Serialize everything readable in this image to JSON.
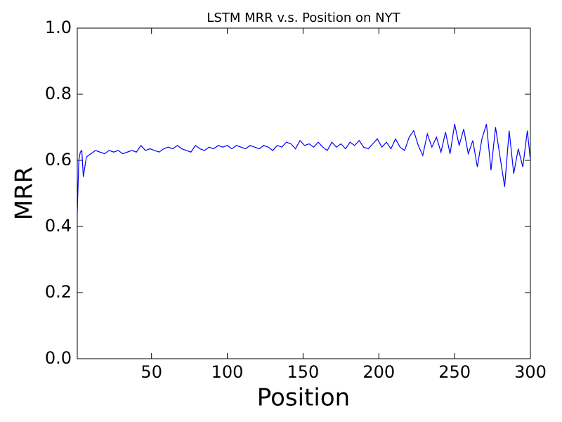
{
  "chart_data": {
    "type": "line",
    "title": "LSTM MRR v.s. Position on NYT",
    "x_label": "Position",
    "y_label": "MRR",
    "xlim": [
      1,
      300
    ],
    "ylim": [
      0,
      1
    ],
    "xticks": [
      50,
      100,
      150,
      200,
      250,
      300
    ],
    "yticks": [
      {
        "value": 0,
        "label": "0.0"
      },
      0.2,
      0.4,
      0.6,
      0.8,
      {
        "value": 1,
        "label": "1.0"
      }
    ],
    "grid": false,
    "series": [
      {
        "name": "LSTM",
        "color": "#0000ff",
        "x": [
          1,
          2,
          3,
          4,
          5,
          7,
          10,
          13,
          16,
          19,
          22,
          25,
          28,
          31,
          34,
          37,
          40,
          43,
          46,
          49,
          52,
          55,
          58,
          61,
          64,
          67,
          70,
          73,
          76,
          79,
          82,
          85,
          88,
          91,
          94,
          97,
          100,
          103,
          106,
          109,
          112,
          115,
          118,
          121,
          124,
          127,
          130,
          133,
          136,
          139,
          142,
          145,
          148,
          151,
          154,
          157,
          160,
          163,
          166,
          169,
          172,
          175,
          178,
          181,
          184,
          187,
          190,
          193,
          196,
          199,
          202,
          205,
          208,
          211,
          214,
          217,
          220,
          223,
          226,
          229,
          232,
          235,
          238,
          241,
          244,
          247,
          250,
          253,
          256,
          259,
          262,
          265,
          268,
          271,
          274,
          277,
          280,
          283,
          286,
          289,
          292,
          295,
          298,
          300
        ],
        "values": [
          0.44,
          0.6,
          0.625,
          0.63,
          0.55,
          0.61,
          0.62,
          0.63,
          0.625,
          0.62,
          0.63,
          0.625,
          0.63,
          0.62,
          0.625,
          0.63,
          0.625,
          0.645,
          0.63,
          0.635,
          0.63,
          0.625,
          0.635,
          0.64,
          0.635,
          0.645,
          0.635,
          0.63,
          0.625,
          0.645,
          0.635,
          0.63,
          0.64,
          0.635,
          0.645,
          0.64,
          0.645,
          0.635,
          0.645,
          0.64,
          0.635,
          0.645,
          0.64,
          0.635,
          0.645,
          0.64,
          0.63,
          0.645,
          0.64,
          0.655,
          0.65,
          0.635,
          0.66,
          0.645,
          0.65,
          0.64,
          0.655,
          0.64,
          0.63,
          0.655,
          0.64,
          0.65,
          0.635,
          0.655,
          0.645,
          0.66,
          0.64,
          0.635,
          0.65,
          0.665,
          0.64,
          0.655,
          0.635,
          0.665,
          0.64,
          0.63,
          0.67,
          0.69,
          0.645,
          0.615,
          0.68,
          0.64,
          0.67,
          0.625,
          0.685,
          0.62,
          0.71,
          0.645,
          0.695,
          0.62,
          0.66,
          0.58,
          0.665,
          0.71,
          0.57,
          0.7,
          0.61,
          0.52,
          0.69,
          0.56,
          0.635,
          0.58,
          0.69,
          0.6
        ]
      }
    ]
  }
}
